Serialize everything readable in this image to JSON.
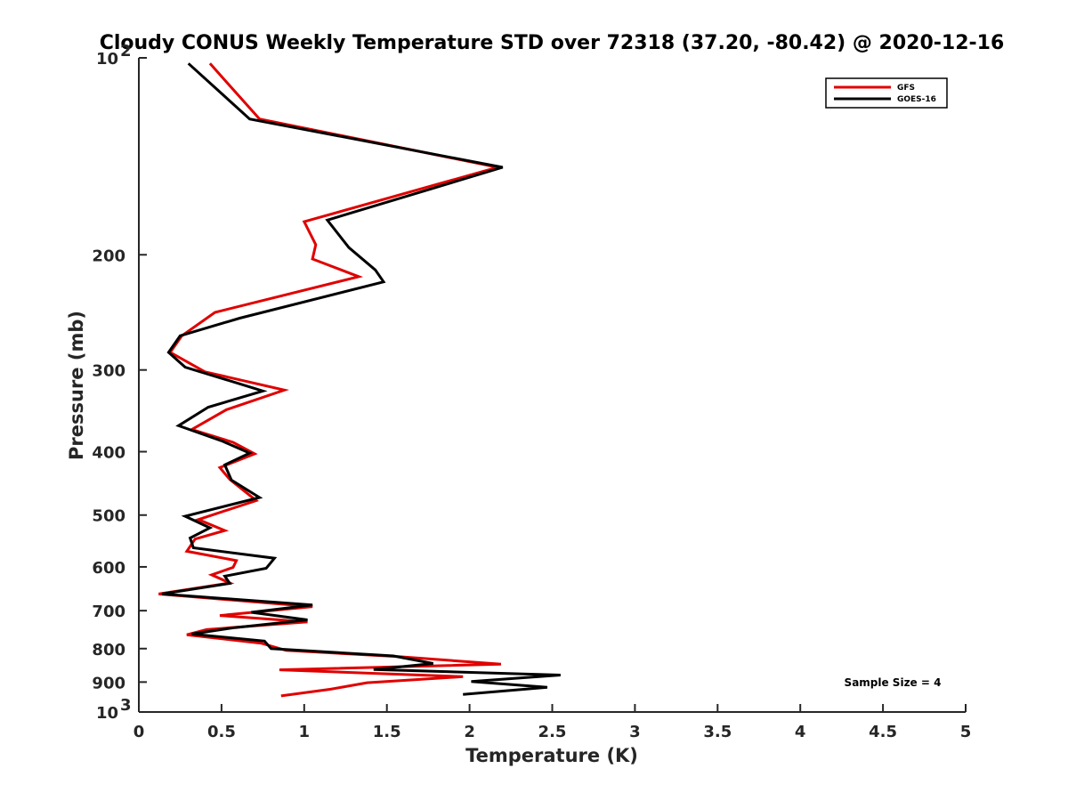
{
  "chart_data": {
    "type": "line",
    "title": "Cloudy CONUS Weekly Temperature STD over 72318 (37.20, -80.42) @ 2020-12-16",
    "xlabel": "Temperature (K)",
    "ylabel": "Pressure (mb)",
    "xlim": [
      0,
      5
    ],
    "ylim": [
      1000,
      100
    ],
    "y_scale": "log",
    "y_reversed": true,
    "grid": false,
    "legend_position": "top-right",
    "x_ticks": [
      0,
      0.5,
      1,
      1.5,
      2,
      2.5,
      3,
      3.5,
      4,
      4.5,
      5
    ],
    "x_tick_labels": [
      "0",
      "0.5",
      "1",
      "1.5",
      "2",
      "2.5",
      "3",
      "3.5",
      "4",
      "4.5",
      "5"
    ],
    "y_ticks": [
      {
        "value": 100,
        "base": "10",
        "exp": "2"
      },
      {
        "value": 200,
        "label": "200"
      },
      {
        "value": 300,
        "label": "300"
      },
      {
        "value": 400,
        "label": "400"
      },
      {
        "value": 500,
        "label": "500"
      },
      {
        "value": 600,
        "label": "600"
      },
      {
        "value": 700,
        "label": "700"
      },
      {
        "value": 800,
        "label": "800"
      },
      {
        "value": 900,
        "label": "900"
      },
      {
        "value": 1000,
        "base": "10",
        "exp": "3"
      }
    ],
    "series": [
      {
        "name": "GFS",
        "color": "#e00000",
        "x": [
          0.43,
          0.73,
          2.17,
          1.0,
          1.07,
          1.05,
          1.33,
          0.46,
          0.26,
          0.19,
          0.4,
          0.88,
          0.53,
          0.32,
          0.57,
          0.7,
          0.49,
          0.55,
          0.71,
          0.36,
          0.52,
          0.34,
          0.29,
          0.59,
          0.57,
          0.44,
          0.55,
          0.12,
          1.05,
          0.49,
          1.02,
          0.41,
          0.29,
          0.74,
          0.89,
          1.57,
          2.19,
          0.85,
          1.96,
          1.38,
          1.16,
          0.86
        ],
        "y": [
          102,
          124,
          147,
          178,
          193,
          203,
          216,
          245,
          266,
          282,
          302,
          322,
          345,
          370,
          387,
          403,
          423,
          441,
          475,
          508,
          528,
          544,
          568,
          587,
          601,
          617,
          635,
          660,
          690,
          712,
          728,
          748,
          762,
          785,
          805,
          823,
          845,
          862,
          883,
          902,
          923,
          945
        ]
      },
      {
        "name": "GOES-16",
        "color": "#000000",
        "x": [
          0.3,
          0.67,
          2.2,
          1.14,
          1.27,
          1.43,
          1.48,
          0.61,
          0.25,
          0.18,
          0.28,
          0.75,
          0.42,
          0.24,
          0.5,
          0.67,
          0.52,
          0.56,
          0.73,
          0.28,
          0.43,
          0.31,
          0.33,
          0.82,
          0.77,
          0.52,
          0.55,
          0.14,
          1.05,
          0.68,
          1.02,
          0.58,
          0.32,
          0.76,
          0.8,
          1.54,
          1.78,
          1.42,
          2.55,
          2.01,
          2.47,
          1.96
        ],
        "y": [
          102,
          124,
          147,
          177,
          195,
          211,
          220,
          250,
          266,
          282,
          297,
          323,
          342,
          365,
          385,
          402,
          419,
          442,
          470,
          502,
          523,
          542,
          561,
          582,
          603,
          620,
          636,
          660,
          686,
          704,
          723,
          743,
          760,
          779,
          800,
          821,
          843,
          861,
          878,
          898,
          917,
          940
        ]
      }
    ],
    "annotation": "Sample Size = 4"
  }
}
